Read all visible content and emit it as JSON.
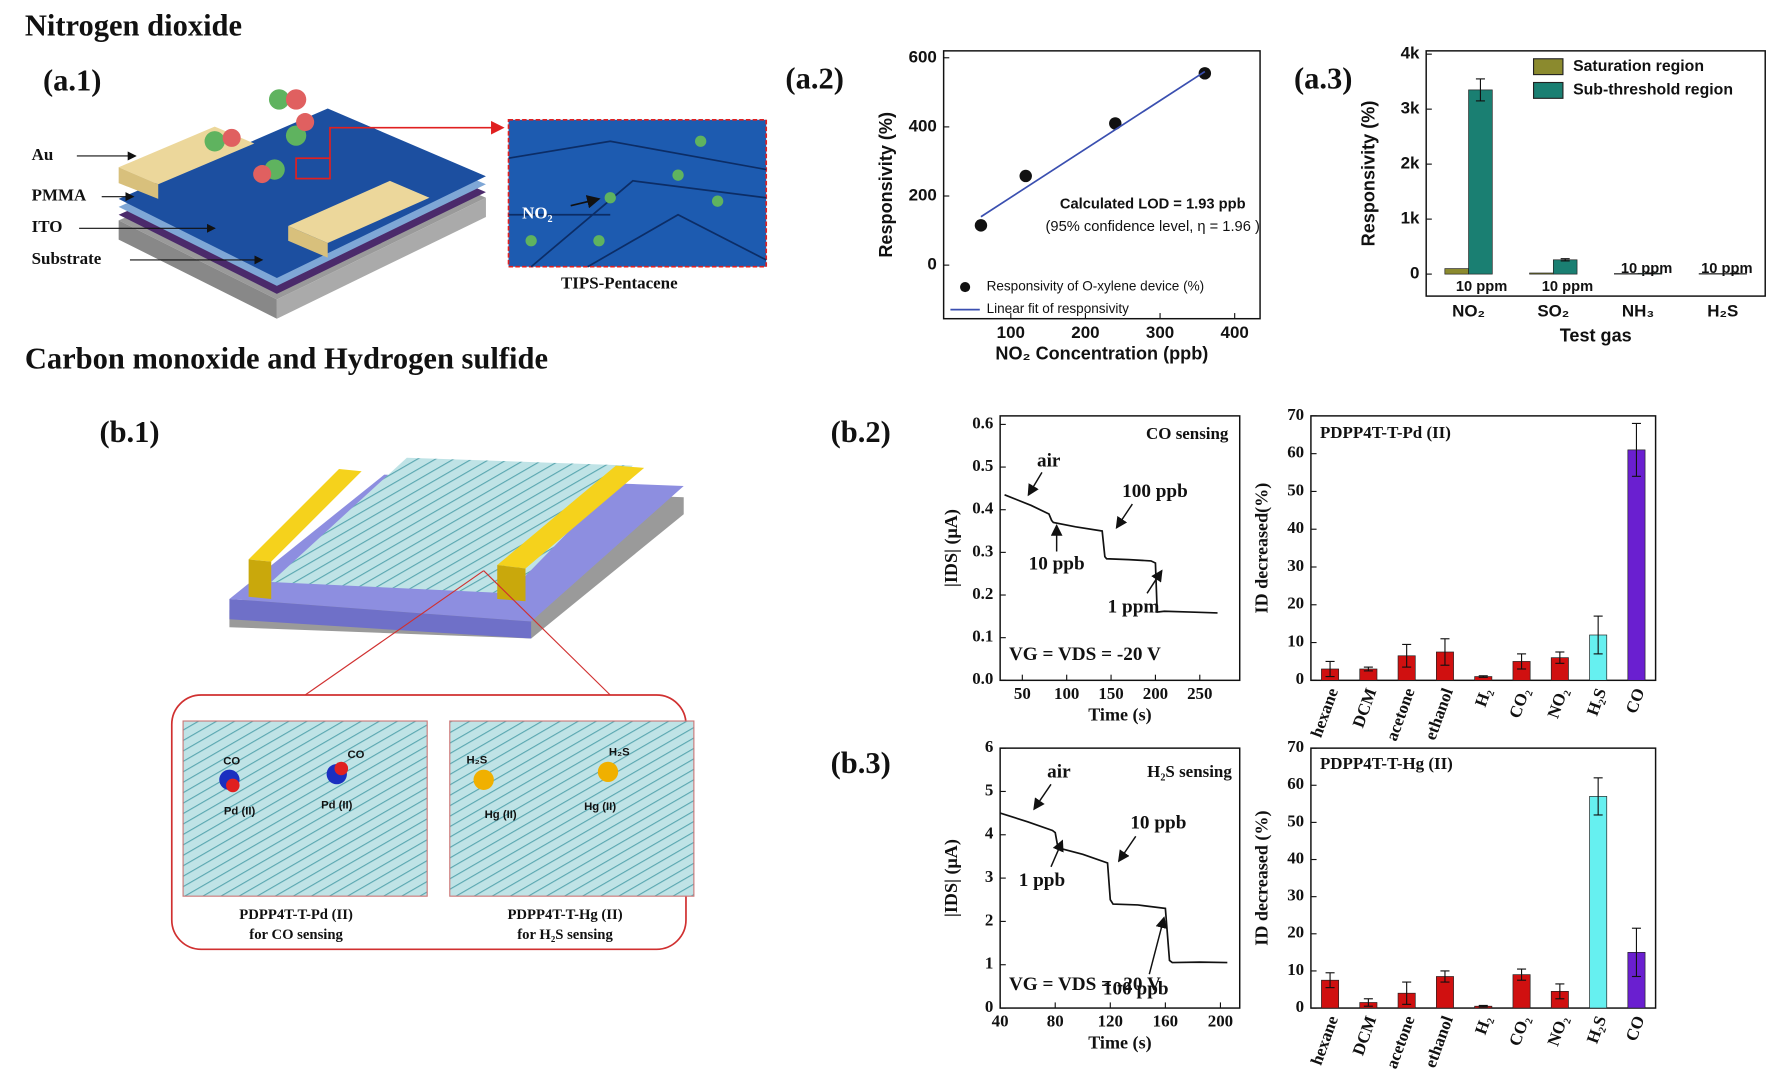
{
  "headings": [
    "Nitrogen dioxide",
    "Carbon monoxide and Hydrogen sulfide"
  ],
  "panel_labels": [
    "(a.1)",
    "(a.2)",
    "(a.3)",
    "(b.1)",
    "(b.2)",
    "(b.3)"
  ],
  "diagram_a1": {
    "layers": [
      "Au",
      "PMMA",
      "ITO",
      "Substrate"
    ],
    "molecule": "NO₂",
    "film": "TIPS-Pentacene"
  },
  "diagram_b1": {
    "insets": [
      {
        "gases": [
          "CO",
          "CO"
        ],
        "sites": [
          "Pd (II)",
          "Pd (II)"
        ],
        "caption": [
          "PDPP4T-T-Pd (II)",
          "for CO sensing"
        ]
      },
      {
        "gases": [
          "H₂S",
          "H₂S"
        ],
        "sites": [
          "Hg (II)",
          "Hg (II)"
        ],
        "caption": [
          "PDPP4T-T-Hg (II)",
          "for H₂S sensing"
        ]
      }
    ]
  },
  "chart_data": [
    {
      "type": "scatter",
      "font": "sans",
      "xlabel": "NO₂ Concentration (ppb)",
      "ylabel": "Responsivity (%)",
      "xlim": [
        10,
        434
      ],
      "ylim": [
        -155,
        620
      ],
      "xticks": [
        100,
        200,
        300,
        400
      ],
      "yticks": [
        0,
        200,
        400,
        600
      ],
      "series": [
        {
          "name": "Responsivity of O-xylene device (%)",
          "color": "#111111",
          "style": "points",
          "x": [
            60,
            120,
            240,
            360
          ],
          "values": [
            115,
            258,
            410,
            555
          ]
        },
        {
          "name": "Linear fit of responsivity",
          "color": "#3a4fb0",
          "style": "line",
          "x": [
            60,
            360
          ],
          "values": [
            140,
            560
          ]
        }
      ],
      "annotations": [
        "Calculated LOD = 1.93 ppb",
        "(95% confidence level, η = 1.96 )"
      ]
    },
    {
      "type": "bar",
      "font": "sans",
      "xlabel": "Test gas",
      "ylabel": "Responsivity (%)",
      "categories": [
        "NO₂",
        "SO₂",
        "NH₃",
        "H₂S"
      ],
      "ylim": [
        -400,
        4060
      ],
      "yticks": [
        0,
        {
          "value": 1000,
          "label": "1k"
        },
        {
          "value": 2000,
          "label": "2k"
        },
        {
          "value": 3000,
          "label": "3k"
        },
        {
          "value": 4000,
          "label": "4k"
        }
      ],
      "legend": "top-right",
      "series": [
        {
          "name": "Saturation region",
          "color": "#8b8a2e",
          "values": [
            100,
            20,
            10,
            10
          ]
        },
        {
          "name": "Sub-threshold region",
          "color": "#1a7f72",
          "values": [
            3350,
            260,
            15,
            10
          ],
          "errors": [
            200,
            20,
            5,
            5
          ]
        }
      ],
      "annotations": [
        "10 ppm",
        "10 ppm",
        "10 ppm",
        "10 ppm"
      ]
    },
    {
      "type": "line",
      "font": "serif",
      "title": "CO sensing",
      "xlabel": "Time (s)",
      "ylabel": "|IDS| (μA)",
      "color": "#111111",
      "xlim": [
        25,
        295
      ],
      "ylim": [
        0,
        0.62
      ],
      "xticks": [
        50,
        100,
        150,
        200,
        250
      ],
      "yticks": [
        {
          "value": 0,
          "label": "0.0"
        },
        0.1,
        0.2,
        0.3,
        0.4,
        0.5,
        0.6
      ],
      "x": [
        30,
        60,
        80,
        83,
        85,
        110,
        140,
        143,
        145,
        170,
        195,
        200,
        202,
        210,
        240,
        270
      ],
      "values": [
        0.435,
        0.41,
        0.39,
        0.375,
        0.37,
        0.36,
        0.35,
        0.29,
        0.285,
        0.283,
        0.28,
        0.275,
        0.16,
        0.162,
        0.16,
        0.158
      ],
      "annotations": [
        "air",
        "10 ppb",
        "100 ppb",
        "1 ppm",
        "VG = VDS = -20 V"
      ]
    },
    {
      "type": "bar",
      "font": "serif",
      "title": "PDPP4T-T-Pd (II)",
      "ylabel": "ID decreased(%)",
      "label_rotate": true,
      "categories": [
        "hexane",
        "DCM",
        "acetone",
        "ethanol",
        "H₂",
        "CO₂",
        "NO₂",
        "H₂S",
        "CO"
      ],
      "ylim": [
        0,
        70
      ],
      "yticks": [
        0,
        10,
        20,
        30,
        40,
        50,
        60,
        70
      ],
      "series": [
        {
          "colors": [
            "#d01010",
            "#d01010",
            "#d01010",
            "#d01010",
            "#d01010",
            "#d01010",
            "#d01010",
            "#66f0f0",
            "#6a1fd0"
          ],
          "values": [
            3,
            3,
            6.5,
            7.5,
            1,
            5,
            6,
            12,
            61
          ],
          "errors": [
            2,
            0.5,
            3,
            3.5,
            0.2,
            2,
            1.5,
            5,
            7
          ]
        }
      ]
    },
    {
      "type": "line",
      "font": "serif",
      "title": "H₂S sensing",
      "xlabel": "Time (s)",
      "ylabel": "|IDS| (μA)",
      "color": "#111111",
      "xlim": [
        40,
        214
      ],
      "ylim": [
        0,
        6
      ],
      "xticks": [
        40,
        80,
        120,
        160,
        200
      ],
      "yticks": [
        0,
        1,
        2,
        3,
        4,
        5,
        6
      ],
      "x": [
        40,
        60,
        78,
        80,
        82,
        100,
        118,
        120,
        122,
        140,
        160,
        163,
        165,
        185,
        205
      ],
      "values": [
        4.5,
        4.3,
        4.1,
        4.05,
        3.7,
        3.55,
        3.35,
        2.5,
        2.4,
        2.38,
        2.3,
        1.1,
        1.05,
        1.06,
        1.05
      ],
      "annotations": [
        "air",
        "1 ppb",
        "10 ppb",
        "100 ppb",
        "VG = VDS = -20 V"
      ]
    },
    {
      "type": "bar",
      "font": "serif",
      "title": "PDPP4T-T-Hg (II)",
      "ylabel": "ID decreased (%)",
      "label_rotate": true,
      "categories": [
        "hexane",
        "DCM",
        "acetone",
        "ethanol",
        "H₂",
        "CO₂",
        "NO₂",
        "H₂S",
        "CO"
      ],
      "ylim": [
        0,
        70
      ],
      "yticks": [
        0,
        10,
        20,
        30,
        40,
        50,
        60,
        70
      ],
      "series": [
        {
          "colors": [
            "#d01010",
            "#d01010",
            "#d01010",
            "#d01010",
            "#d01010",
            "#d01010",
            "#d01010",
            "#66f0f0",
            "#6a1fd0"
          ],
          "values": [
            7.5,
            1.5,
            4,
            8.5,
            0.5,
            9,
            4.5,
            57,
            15
          ],
          "errors": [
            2,
            1,
            3,
            1.5,
            0.2,
            1.5,
            2,
            5,
            6.5
          ]
        }
      ]
    }
  ]
}
